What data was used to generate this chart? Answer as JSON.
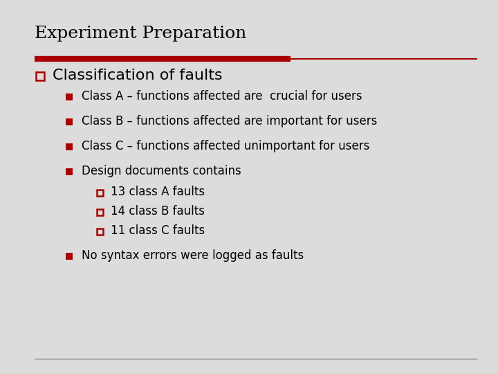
{
  "title": "Experiment Preparation",
  "bg_color": "#dcdcdc",
  "title_color": "#000000",
  "title_fontsize": 18,
  "red_color": "#aa0000",
  "level1_text": "Classification of faults",
  "level1_fontsize": 16,
  "level2_fontsize": 12,
  "level3_fontsize": 12,
  "level2_items": [
    "Class A – functions affected are  crucial for users",
    "Class B – functions affected are important for users",
    "Class C – functions affected unimportant for users",
    "Design documents contains"
  ],
  "level3_items": [
    "13 class A faults",
    "14 class B faults",
    "11 class C faults"
  ],
  "level2_last": "No syntax errors were logged as faults",
  "bottom_line_color": "#888888"
}
